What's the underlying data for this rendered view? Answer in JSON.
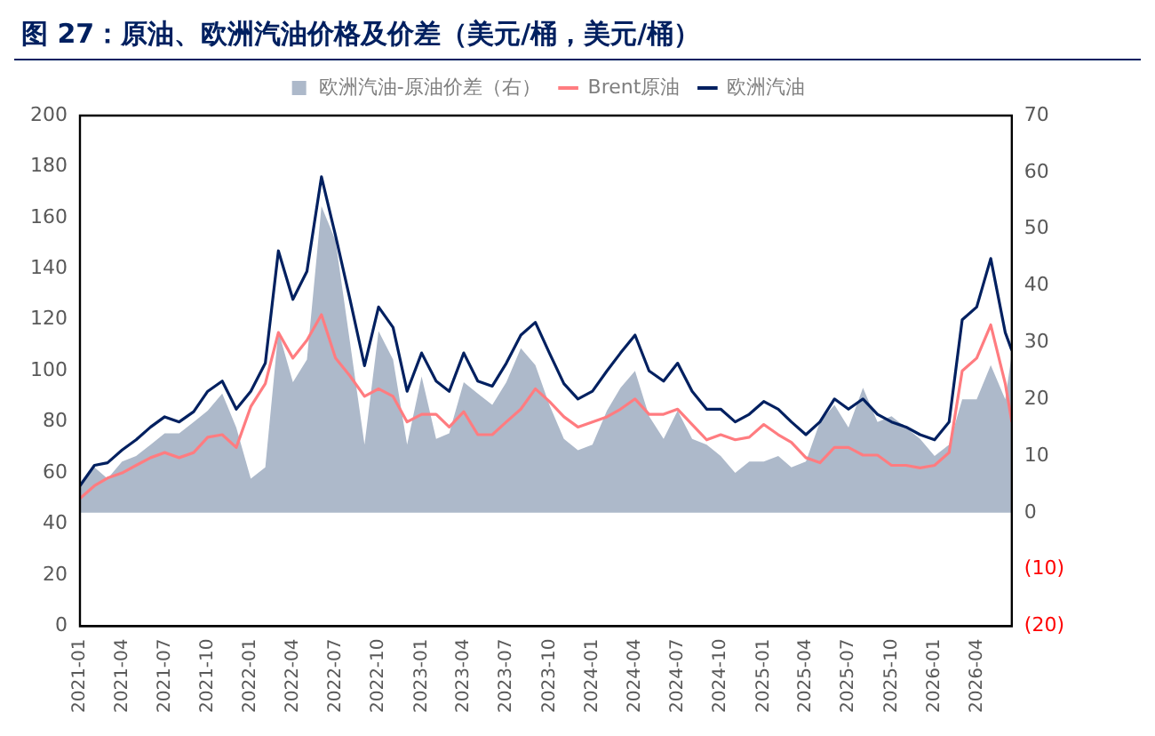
{
  "chart_data": {
    "type": "line",
    "title": "图 27：原油、欧洲汽油价格及价差（美元/桶，美元/桶）",
    "x": [
      "2021-01",
      "2021-02",
      "2021-03",
      "2021-04",
      "2021-05",
      "2021-06",
      "2021-07",
      "2021-08",
      "2021-09",
      "2021-10",
      "2021-11",
      "2021-12",
      "2022-01",
      "2022-02",
      "2022-03",
      "2022-04",
      "2022-05",
      "2022-06",
      "2022-07",
      "2022-08",
      "2022-09",
      "2022-10",
      "2022-11",
      "2022-12",
      "2023-01",
      "2023-02",
      "2023-03",
      "2023-04",
      "2023-05",
      "2023-06",
      "2023-07",
      "2023-08",
      "2023-09",
      "2023-10",
      "2023-11",
      "2023-12",
      "2024-01",
      "2024-02",
      "2024-03",
      "2024-04",
      "2024-05",
      "2024-06",
      "2024-07",
      "2024-08",
      "2024-09",
      "2024-10",
      "2024-11",
      "2024-12",
      "2025-01",
      "2025-02",
      "2025-03",
      "2025-04",
      "2025-05",
      "2025-06",
      "2025-07",
      "2025-08",
      "2025-09",
      "2025-10",
      "2025-11",
      "2025-12",
      "2026-01",
      "2026-02",
      "2026-03",
      "2026-04",
      "2026-05",
      "2026-06",
      "2026-06-15"
    ],
    "series": [
      {
        "name": "欧洲汽油-原油价差（右）",
        "type": "area",
        "axis": "y2",
        "color": "#adb9ca",
        "values": [
          5,
          8,
          6,
          9,
          10,
          12,
          14,
          14,
          16,
          18,
          21,
          15,
          6,
          8,
          32,
          23,
          27,
          54,
          48,
          30,
          12,
          32,
          27,
          12,
          24,
          13,
          14,
          23,
          21,
          19,
          23,
          29,
          26,
          19,
          13,
          11,
          12,
          18,
          22,
          25,
          17,
          13,
          18,
          13,
          12,
          10,
          7,
          9,
          9,
          10,
          8,
          9,
          16,
          19,
          15,
          22,
          16,
          17,
          15,
          13,
          10,
          12,
          20,
          20,
          26,
          20,
          28
        ]
      },
      {
        "name": "Brent原油",
        "color": "#ff7c80",
        "values": [
          50,
          55,
          58,
          60,
          63,
          66,
          68,
          66,
          68,
          74,
          75,
          70,
          86,
          95,
          115,
          105,
          112,
          122,
          105,
          98,
          90,
          93,
          90,
          80,
          83,
          83,
          78,
          84,
          75,
          75,
          80,
          85,
          93,
          88,
          82,
          78,
          80,
          82,
          85,
          89,
          83,
          83,
          85,
          79,
          73,
          75,
          73,
          74,
          79,
          75,
          72,
          66,
          64,
          70,
          70,
          67,
          67,
          63,
          63,
          62,
          63,
          68,
          100,
          105,
          118,
          95,
          80
        ]
      },
      {
        "name": "欧洲汽油",
        "color": "#002060",
        "values": [
          55,
          63,
          64,
          69,
          73,
          78,
          82,
          80,
          84,
          92,
          96,
          85,
          92,
          103,
          147,
          128,
          139,
          176,
          153,
          128,
          102,
          125,
          117,
          92,
          107,
          96,
          92,
          107,
          96,
          94,
          103,
          114,
          119,
          107,
          95,
          89,
          92,
          100,
          107,
          114,
          100,
          96,
          103,
          92,
          85,
          85,
          80,
          83,
          88,
          85,
          80,
          75,
          80,
          89,
          85,
          89,
          83,
          80,
          78,
          75,
          73,
          80,
          120,
          125,
          144,
          115,
          108
        ]
      }
    ],
    "xlim": [
      "2021-01",
      "2026-06-15"
    ],
    "xticks": [
      "2021-01",
      "2021-04",
      "2021-07",
      "2021-10",
      "2022-01",
      "2022-04",
      "2022-07",
      "2022-10",
      "2023-01",
      "2023-04",
      "2023-07",
      "2023-10",
      "2024-01",
      "2024-04",
      "2024-07",
      "2024-10",
      "2025-01",
      "2025-04",
      "2025-07",
      "2025-10",
      "2026-01",
      "2026-04"
    ],
    "ylim": [
      0,
      200
    ],
    "yticks": [
      0,
      20,
      40,
      60,
      80,
      100,
      120,
      140,
      160,
      180,
      200
    ],
    "y2lim": [
      -20,
      70
    ],
    "y2ticks": [
      {
        "value": -20,
        "label": "(20)"
      },
      {
        "value": -10,
        "label": "(10)"
      },
      0,
      10,
      20,
      30,
      40,
      50,
      60,
      70
    ],
    "grid": false,
    "legend": "top",
    "marker": "none",
    "line_style": "solid"
  }
}
